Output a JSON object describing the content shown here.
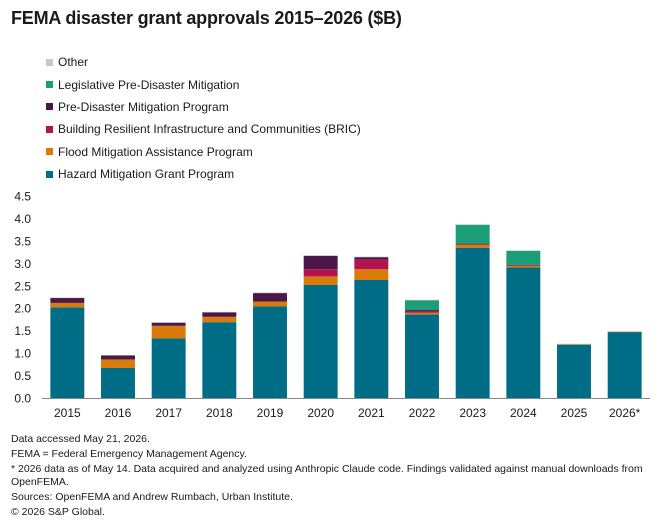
{
  "title": "FEMA disaster grant approvals 2015–2026 ($B)",
  "legend": [
    {
      "label": "Other",
      "color": "#c8c8c8"
    },
    {
      "label": "Legislative Pre-Disaster Mitigation",
      "color": "#1b9e77"
    },
    {
      "label": "Pre-Disaster Mitigation Program",
      "color": "#4a1748"
    },
    {
      "label": "Building Resilient Infrastructure and Communities (BRIC)",
      "color": "#b5134e"
    },
    {
      "label": "Flood Mitigation Assistance Program",
      "color": "#d97b0b"
    },
    {
      "label": "Hazard Mitigation Grant Program",
      "color": "#006d87"
    }
  ],
  "notes": [
    "Data accessed May 21, 2026.",
    "FEMA = Federal Emergency Management Agency.",
    "* 2026 data as of May 14. Data acquired and analyzed using Anthropic Claude code. Findings validated against manual downloads from OpenFEMA.",
    "Sources: OpenFEMA and Andrew Rumbach, Urban Institute.",
    "© 2026 S&P Global."
  ],
  "chart_data": {
    "type": "bar",
    "stacked": true,
    "title": "FEMA disaster grant approvals 2015–2026 ($B)",
    "xlabel": "",
    "ylabel": "",
    "categories": [
      "2015",
      "2016",
      "2017",
      "2018",
      "2019",
      "2020",
      "2021",
      "2022",
      "2023",
      "2024",
      "2025",
      "2026*"
    ],
    "ylim": [
      0,
      4.5
    ],
    "yticks": [
      0.0,
      0.5,
      1.0,
      1.5,
      2.0,
      2.5,
      3.0,
      3.5,
      4.0,
      4.5
    ],
    "ytick_labels": [
      "0.0",
      "0.5",
      "1.0",
      "1.5",
      "2.0",
      "2.5",
      "3.0",
      "3.5",
      "4.0",
      "4.5"
    ],
    "grid": false,
    "legend_position": "top-left",
    "series": [
      {
        "name": "Hazard Mitigation Grant Program",
        "color": "#006d87",
        "values": [
          2.03,
          0.68,
          1.34,
          1.7,
          2.05,
          2.53,
          2.64,
          1.87,
          3.36,
          2.92,
          1.2,
          1.48
        ]
      },
      {
        "name": "Flood Mitigation Assistance Program",
        "color": "#d97b0b",
        "values": [
          0.1,
          0.19,
          0.28,
          0.12,
          0.11,
          0.19,
          0.24,
          0.04,
          0.07,
          0.04,
          0.01,
          0.01
        ]
      },
      {
        "name": "Building Resilient Infrastructure and Communities (BRIC)",
        "color": "#b5134e",
        "values": [
          0.0,
          0.0,
          0.0,
          0.0,
          0.0,
          0.16,
          0.21,
          0.03,
          0.01,
          0.01,
          0.0,
          0.0
        ]
      },
      {
        "name": "Pre-Disaster Mitigation Program",
        "color": "#4a1748",
        "values": [
          0.11,
          0.09,
          0.07,
          0.1,
          0.19,
          0.3,
          0.06,
          0.03,
          0.01,
          0.01,
          0.0,
          0.0
        ]
      },
      {
        "name": "Legislative Pre-Disaster Mitigation",
        "color": "#1b9e77",
        "values": [
          0.0,
          0.0,
          0.0,
          0.0,
          0.0,
          0.0,
          0.0,
          0.22,
          0.42,
          0.31,
          0.0,
          0.0
        ]
      },
      {
        "name": "Other",
        "color": "#c8c8c8",
        "values": [
          0.01,
          0.01,
          0.01,
          0.01,
          0.01,
          0.01,
          0.01,
          0.01,
          0.01,
          0.01,
          0.01,
          0.01
        ]
      }
    ]
  }
}
